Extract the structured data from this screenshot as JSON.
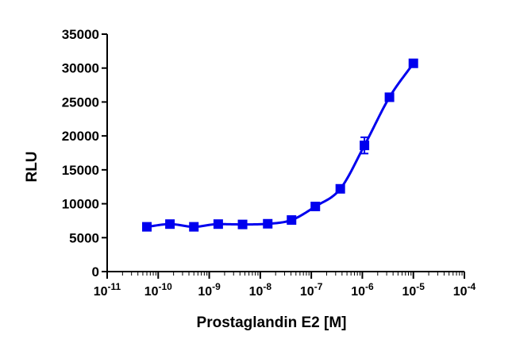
{
  "chart_data": {
    "type": "scatter",
    "xlabel": "Prostaglandin E2 [M]",
    "ylabel": "RLU",
    "x_scale": "log10",
    "xlim": [
      1e-11,
      0.0001
    ],
    "ylim": [
      0,
      35000
    ],
    "x_ticks": [
      {
        "base": "10",
        "exp": "-11"
      },
      {
        "base": "10",
        "exp": "-10"
      },
      {
        "base": "10",
        "exp": "-9"
      },
      {
        "base": "10",
        "exp": "-8"
      },
      {
        "base": "10",
        "exp": "-7"
      },
      {
        "base": "10",
        "exp": "-6"
      },
      {
        "base": "10",
        "exp": "-5"
      },
      {
        "base": "10",
        "exp": "-4"
      }
    ],
    "y_ticks": [
      "0",
      "5000",
      "10000",
      "15000",
      "20000",
      "25000",
      "30000",
      "35000"
    ],
    "grid": false,
    "legend": "none",
    "series": [
      {
        "x": [
          6e-11,
          1.7e-10,
          5e-10,
          1.5e-09,
          4.5e-09,
          1.4e-08,
          4.1e-08,
          1.2e-07,
          3.7e-07,
          1.1e-06,
          3.4e-06,
          1e-05
        ],
        "y": [
          6600,
          7000,
          6600,
          7000,
          6950,
          7050,
          7600,
          9600,
          12200,
          18600,
          25700,
          30700
        ],
        "error": [
          0,
          0,
          0,
          0,
          0,
          0,
          0,
          0,
          0,
          1200,
          0,
          0
        ],
        "fit": "sigmoidal dose-response",
        "color": "#0000ee"
      }
    ]
  }
}
